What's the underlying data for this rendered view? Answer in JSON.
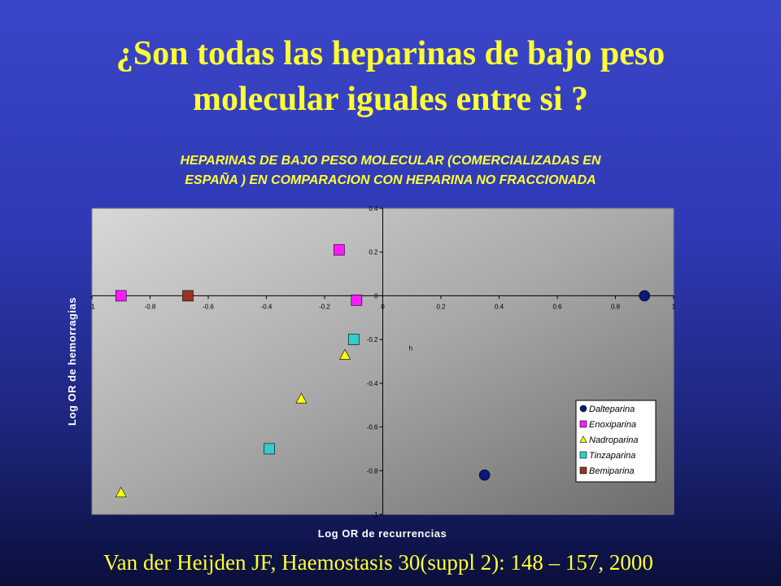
{
  "slide": {
    "title_line1": "¿Son todas las heparinas de bajo peso",
    "title_line2": "molecular iguales entre si ?",
    "citation": "Van der Heijden JF, Haemostasis 30(suppl 2): 148 – 157, 2000"
  },
  "chart_data": {
    "type": "scatter",
    "title_line1": "HEPARINAS DE BAJO PESO MOLECULAR (COMERCIALIZADAS EN",
    "title_line2": "ESPAÑA ) EN COMPARACION CON HEPARINA NO FRACCIONADA",
    "xlabel": "Log OR de recurrencias",
    "ylabel": "Log OR de hemorragias",
    "xlim": [
      -1,
      1
    ],
    "ylim": [
      -1,
      0.4
    ],
    "xticks": [
      -1,
      -0.8,
      -0.6,
      -0.4,
      -0.2,
      0,
      0.2,
      0.4,
      0.6,
      0.8,
      1
    ],
    "xtick_labels": [
      "-1",
      "-0.8",
      "-0.6",
      "-0.4",
      "-0.2",
      "0",
      "0.2",
      "0.4",
      "0.6",
      "0.8",
      "1"
    ],
    "yticks": [
      0.4,
      0.2,
      0,
      -0.2,
      -0.4,
      -0.6,
      -0.8,
      -1
    ],
    "ytick_labels": [
      "0.4",
      "0.2",
      "0",
      "-0.2",
      "-0.4",
      "-0.6",
      "-0.8",
      "-1"
    ],
    "grid": false,
    "legend_position": "bottom-right",
    "annotation": {
      "text": "h",
      "x": 0.09,
      "y": -0.25
    },
    "series": [
      {
        "name": "Dalteparina",
        "marker": "circle",
        "color": "#0a1a78",
        "points": [
          {
            "x": 0.9,
            "y": 0.0
          },
          {
            "x": 0.35,
            "y": -0.82
          }
        ]
      },
      {
        "name": "Enoxiparina",
        "marker": "square",
        "color": "#ff1aff",
        "points": [
          {
            "x": -0.9,
            "y": 0.0
          },
          {
            "x": -0.15,
            "y": 0.21
          },
          {
            "x": -0.09,
            "y": -0.02
          }
        ]
      },
      {
        "name": "Nadroparina",
        "marker": "triangle",
        "color": "#ffff00",
        "points": [
          {
            "x": -0.9,
            "y": -0.9
          },
          {
            "x": -0.28,
            "y": -0.47
          },
          {
            "x": -0.13,
            "y": -0.27
          }
        ]
      },
      {
        "name": "Tinzaparina",
        "marker": "square",
        "color": "#33cccc",
        "points": [
          {
            "x": -0.39,
            "y": -0.7
          },
          {
            "x": -0.1,
            "y": -0.2
          }
        ]
      },
      {
        "name": "Bemiparina",
        "marker": "square",
        "color": "#993322",
        "points": [
          {
            "x": -0.67,
            "y": 0.0
          }
        ]
      }
    ]
  }
}
